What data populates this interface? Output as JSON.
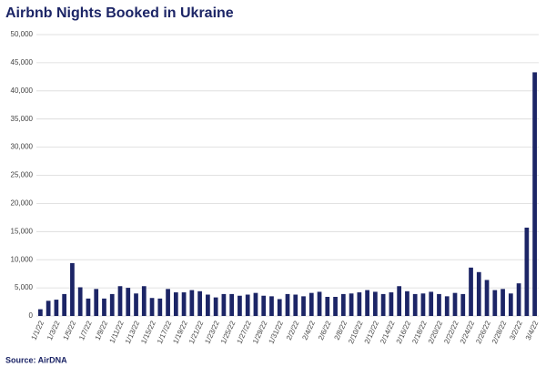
{
  "chart_data": {
    "type": "bar",
    "title": "Airbnb Nights Booked in Ukraine",
    "source": "Source: AirDNA",
    "categories": [
      "1/1/22",
      null,
      "1/3/22",
      null,
      "1/5/22",
      null,
      "1/7/22",
      null,
      "1/9/22",
      null,
      "1/11/22",
      null,
      "1/13/22",
      null,
      "1/15/22",
      null,
      "1/17/22",
      null,
      "1/19/22",
      null,
      "1/21/22",
      null,
      "1/23/22",
      null,
      "1/25/22",
      null,
      "1/27/22",
      null,
      "1/29/22",
      null,
      "1/31/22",
      null,
      "2/2/22",
      null,
      "2/4/22",
      null,
      "2/6/22",
      null,
      "2/8/22",
      null,
      "2/10/22",
      null,
      "2/12/22",
      null,
      "2/14/22",
      null,
      "2/16/22",
      null,
      "2/18/22",
      null,
      "2/20/22",
      null,
      "2/22/22",
      null,
      "2/24/22",
      null,
      "2/26/22",
      null,
      "2/28/22",
      null,
      "3/2/22",
      null,
      "3/4/22"
    ],
    "values": [
      1200,
      2700,
      2900,
      3900,
      9400,
      5100,
      3100,
      4800,
      3100,
      3900,
      5300,
      5000,
      4000,
      5300,
      3200,
      3100,
      4800,
      4200,
      4200,
      4600,
      4400,
      3800,
      3300,
      3900,
      3900,
      3600,
      3800,
      4100,
      3600,
      3500,
      3000,
      3900,
      3800,
      3500,
      4100,
      4300,
      3400,
      3400,
      3900,
      4000,
      4200,
      4600,
      4300,
      3900,
      4200,
      5300,
      4400,
      3900,
      4000,
      4300,
      3900,
      3500,
      4100,
      3900,
      8600,
      7800,
      6400,
      4600,
      4800,
      4000,
      5800,
      15700,
      43300
    ],
    "color": "#1c2566",
    "ylim": [
      0,
      50000
    ],
    "yticks": [
      0,
      {
        "value": 5000,
        "label": "5,000"
      },
      {
        "value": 10000,
        "label": "10,000"
      },
      {
        "value": 15000,
        "label": "15,000"
      },
      {
        "value": 20000,
        "label": "20,000"
      },
      {
        "value": 25000,
        "label": "25,000"
      },
      {
        "value": 30000,
        "label": "30,000"
      },
      {
        "value": 35000,
        "label": "35,000"
      },
      {
        "value": 40000,
        "label": "40,000"
      },
      {
        "value": 45000,
        "label": "45,000"
      },
      {
        "value": 50000,
        "label": "50,000"
      }
    ],
    "grid": true
  }
}
